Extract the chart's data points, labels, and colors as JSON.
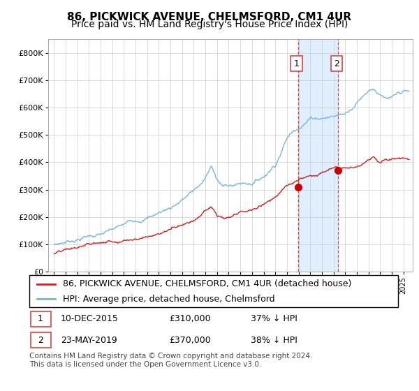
{
  "title": "86, PICKWICK AVENUE, CHELMSFORD, CM1 4UR",
  "subtitle": "Price paid vs. HM Land Registry's House Price Index (HPI)",
  "ylim": [
    0,
    850000
  ],
  "yticks": [
    0,
    100000,
    200000,
    300000,
    400000,
    500000,
    600000,
    700000,
    800000
  ],
  "ytick_labels": [
    "£0",
    "£100K",
    "£200K",
    "£300K",
    "£400K",
    "£500K",
    "£600K",
    "£700K",
    "£800K"
  ],
  "sale1_year": 2015.95,
  "sale1_price": 310000,
  "sale2_year": 2019.37,
  "sale2_price": 370000,
  "legend_line1": "86, PICKWICK AVENUE, CHELMSFORD, CM1 4UR (detached house)",
  "legend_line2": "HPI: Average price, detached house, Chelmsford",
  "hpi_color": "#7ab4d8",
  "price_color": "#cc2222",
  "vline_color": "#dd4444",
  "shade_color": "#ddeeff",
  "marker_color": "#cc0000",
  "title_fontsize": 11,
  "subtitle_fontsize": 10,
  "tick_fontsize": 8,
  "legend_fontsize": 9,
  "table_fontsize": 9,
  "footer_fontsize": 7.5,
  "footer": "Contains HM Land Registry data © Crown copyright and database right 2024.\nThis data is licensed under the Open Government Licence v3.0."
}
